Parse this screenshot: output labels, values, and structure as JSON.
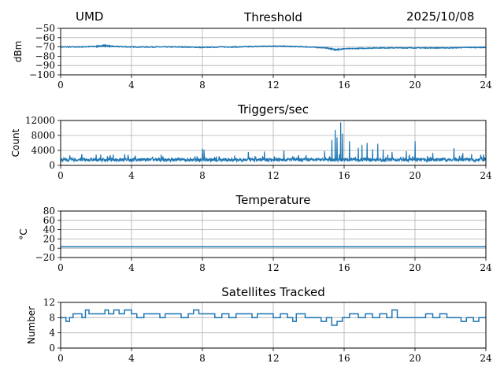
{
  "header": {
    "station": "UMD",
    "date": "2025/10/08"
  },
  "chart_data": [
    {
      "type": "line",
      "title": "Threshold",
      "ylabel": "dBm",
      "xlabel": "",
      "xlim": [
        0,
        24
      ],
      "ylim": [
        -100,
        -50
      ],
      "xticks": [
        0,
        4,
        8,
        12,
        16,
        20,
        24
      ],
      "yticks": [
        -50,
        -60,
        -70,
        -80,
        -90,
        -100
      ],
      "ytick_labels": [
        "−50",
        "−60",
        "−70",
        "−80",
        "−90",
        "−100"
      ],
      "grid": true,
      "x": [
        0,
        1,
        2,
        2.5,
        3,
        4,
        5,
        6,
        7,
        8,
        9,
        10,
        11,
        12,
        13,
        14,
        15,
        15.5,
        16,
        17,
        18,
        19,
        20,
        21,
        22,
        23,
        24
      ],
      "y": [
        -70,
        -70,
        -69.5,
        -68.5,
        -69.5,
        -70,
        -70,
        -70,
        -70,
        -70.5,
        -70,
        -70,
        -69.5,
        -69,
        -69.5,
        -70,
        -71,
        -73,
        -72,
        -71.5,
        -71,
        -71,
        -71,
        -71,
        -71,
        -70.5,
        -70.5
      ]
    },
    {
      "type": "line",
      "title": "Triggers/sec",
      "ylabel": "Count",
      "xlabel": "",
      "xlim": [
        0,
        24
      ],
      "ylim": [
        0,
        12000
      ],
      "xticks": [
        0,
        4,
        8,
        12,
        16,
        20,
        24
      ],
      "yticks": [
        0,
        4000,
        8000,
        12000
      ],
      "ytick_labels": [
        "0",
        "4000",
        "8000",
        "12000"
      ],
      "grid": true,
      "baseline": 1500,
      "spikes": [
        [
          1.2,
          3000
        ],
        [
          3.8,
          2800
        ],
        [
          8.0,
          4500
        ],
        [
          8.1,
          4200
        ],
        [
          10.6,
          3600
        ],
        [
          11.5,
          3700
        ],
        [
          12.6,
          4000
        ],
        [
          14.9,
          3800
        ],
        [
          15.3,
          6800
        ],
        [
          15.5,
          9500
        ],
        [
          15.6,
          7500
        ],
        [
          15.8,
          11500
        ],
        [
          15.9,
          8500
        ],
        [
          16.3,
          6500
        ],
        [
          16.8,
          4700
        ],
        [
          17.0,
          5500
        ],
        [
          17.3,
          6000
        ],
        [
          17.6,
          4300
        ],
        [
          17.9,
          5800
        ],
        [
          18.2,
          4200
        ],
        [
          18.7,
          3600
        ],
        [
          19.5,
          3800
        ],
        [
          20.0,
          6500
        ],
        [
          21.0,
          3300
        ],
        [
          22.2,
          4600
        ],
        [
          22.7,
          3300
        ],
        [
          23.2,
          3000
        ],
        [
          23.7,
          2800
        ]
      ]
    },
    {
      "type": "line",
      "title": "Temperature",
      "ylabel": "°C",
      "xlabel": "",
      "xlim": [
        0,
        24
      ],
      "ylim": [
        -20,
        80
      ],
      "xticks": [
        0,
        4,
        8,
        12,
        16,
        20,
        24
      ],
      "yticks": [
        80,
        60,
        40,
        20,
        0,
        -20
      ],
      "ytick_labels": [
        "80",
        "60",
        "40",
        "20",
        "0",
        "−20"
      ],
      "grid": true,
      "x": [
        0,
        24
      ],
      "y": [
        3,
        3
      ]
    },
    {
      "type": "line",
      "title": "Satellites Tracked",
      "ylabel": "Number",
      "xlabel": "",
      "xlim": [
        0,
        24
      ],
      "ylim": [
        0,
        12
      ],
      "xticks": [
        0,
        4,
        8,
        12,
        16,
        20,
        24
      ],
      "yticks": [
        0,
        4,
        8,
        12
      ],
      "ytick_labels": [
        "0",
        "4",
        "8",
        "12"
      ],
      "grid": true,
      "steps": [
        [
          0,
          8
        ],
        [
          0.3,
          7
        ],
        [
          0.5,
          8
        ],
        [
          0.7,
          9
        ],
        [
          1.2,
          8
        ],
        [
          1.4,
          10
        ],
        [
          1.6,
          9
        ],
        [
          1.9,
          9
        ],
        [
          2.2,
          9
        ],
        [
          2.5,
          10
        ],
        [
          2.7,
          9
        ],
        [
          3.0,
          10
        ],
        [
          3.3,
          9
        ],
        [
          3.6,
          10
        ],
        [
          4.0,
          9
        ],
        [
          4.3,
          8
        ],
        [
          4.7,
          9
        ],
        [
          5.2,
          9
        ],
        [
          5.6,
          8
        ],
        [
          5.9,
          9
        ],
        [
          6.3,
          9
        ],
        [
          6.8,
          8
        ],
        [
          7.2,
          9
        ],
        [
          7.5,
          10
        ],
        [
          7.8,
          9
        ],
        [
          8.2,
          9
        ],
        [
          8.7,
          8
        ],
        [
          9.1,
          9
        ],
        [
          9.5,
          8
        ],
        [
          9.9,
          9
        ],
        [
          10.4,
          9
        ],
        [
          10.8,
          8
        ],
        [
          11.1,
          9
        ],
        [
          11.6,
          9
        ],
        [
          12.0,
          8
        ],
        [
          12.4,
          9
        ],
        [
          12.8,
          8
        ],
        [
          13.1,
          7
        ],
        [
          13.3,
          9
        ],
        [
          13.8,
          8
        ],
        [
          14.2,
          8
        ],
        [
          14.7,
          7
        ],
        [
          15.0,
          8
        ],
        [
          15.3,
          6
        ],
        [
          15.6,
          7
        ],
        [
          15.9,
          8
        ],
        [
          16.3,
          9
        ],
        [
          16.8,
          8
        ],
        [
          17.2,
          9
        ],
        [
          17.6,
          8
        ],
        [
          18.0,
          9
        ],
        [
          18.4,
          8
        ],
        [
          18.7,
          10
        ],
        [
          19.0,
          8
        ],
        [
          19.4,
          8
        ],
        [
          19.8,
          8
        ],
        [
          20.2,
          8
        ],
        [
          20.6,
          9
        ],
        [
          21.0,
          8
        ],
        [
          21.4,
          9
        ],
        [
          21.8,
          8
        ],
        [
          22.3,
          8
        ],
        [
          22.6,
          7
        ],
        [
          22.9,
          8
        ],
        [
          23.3,
          7
        ],
        [
          23.6,
          8
        ],
        [
          24,
          8
        ]
      ]
    }
  ]
}
